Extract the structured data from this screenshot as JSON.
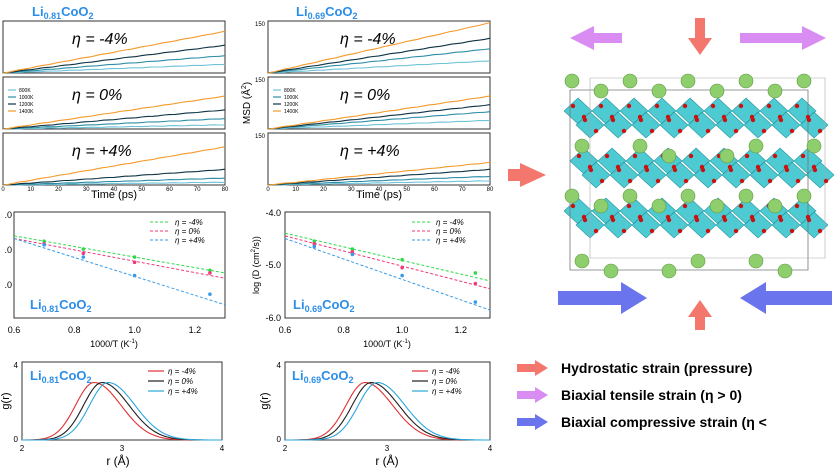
{
  "colors": {
    "c800": "#6fc3d8",
    "c1000": "#2d8ea6",
    "c1200": "#0d3344",
    "c1400": "#f39a2a",
    "eta_neg4": "#2fd94a",
    "eta_0": "#ee3a7a",
    "eta_pos4": "#3a9ae6",
    "gr_neg4": "#e03030",
    "gr_0": "#202020",
    "gr_pos4": "#2aa6dc",
    "title_blue": "#2c8ee8",
    "pink_arrow": "#f4776d",
    "violet_arrow": "#d98cf2",
    "blue_arrow": "#6a74ec",
    "octa": "#3ec6cf",
    "li": "#8fce6c",
    "o": "#cc1111"
  },
  "left_title": "Li",
  "left_title_x": "0.81",
  "left_title_rest": "CoO",
  "left_title_sub2": "2",
  "right_title": "Li",
  "right_title_x": "0.69",
  "right_title_rest": "CoO",
  "right_title_sub2": "2",
  "panels": {
    "eta_neg4": "η = -4%",
    "eta_0": "η = 0%",
    "eta_pos4": "η = +4%"
  },
  "msd": {
    "ylabel": "MSD (Å",
    "ylabel_sup": "2",
    "ylabel_end": ")",
    "yticks": [
      "0",
      "150"
    ],
    "xlabel": "Time (ps)",
    "xticks": [
      "0",
      "10",
      "20",
      "30",
      "40",
      "50",
      "60",
      "70",
      "80"
    ],
    "legend": [
      "800K",
      "1000K",
      "1200K",
      "1400K"
    ]
  },
  "chart_data": [
    {
      "type": "line",
      "title": "Li0.81CoO2 MSD",
      "xlabel": "Time (ps)",
      "ylabel": "",
      "xlim": [
        0,
        80
      ],
      "ylim": [
        0,
        150
      ],
      "subpanels": [
        {
          "eta": "-4%",
          "series": [
            {
              "name": "800K",
              "end": 25
            },
            {
              "name": "1000K",
              "end": 50
            },
            {
              "name": "1200K",
              "end": 80
            },
            {
              "name": "1400K",
              "end": 120
            }
          ]
        },
        {
          "eta": "0%",
          "series": [
            {
              "name": "800K",
              "end": 12
            },
            {
              "name": "1000K",
              "end": 30
            },
            {
              "name": "1200K",
              "end": 55
            },
            {
              "name": "1400K",
              "end": 95
            }
          ]
        },
        {
          "eta": "+4%",
          "series": [
            {
              "name": "800K",
              "end": 8
            },
            {
              "name": "1000K",
              "end": 20
            },
            {
              "name": "1200K",
              "end": 45
            },
            {
              "name": "1400K",
              "end": 110
            }
          ]
        }
      ]
    },
    {
      "type": "line",
      "title": "Li0.69CoO2 MSD",
      "xlabel": "Time (ps)",
      "ylabel": "MSD (Å2)",
      "xlim": [
        0,
        80
      ],
      "ylim": [
        0,
        150
      ],
      "subpanels": [
        {
          "eta": "-4%",
          "series": [
            {
              "name": "800K",
              "end": 35
            },
            {
              "name": "1000K",
              "end": 70
            },
            {
              "name": "1200K",
              "end": 100
            },
            {
              "name": "1400K",
              "end": 145
            }
          ]
        },
        {
          "eta": "0%",
          "series": [
            {
              "name": "800K",
              "end": 25
            },
            {
              "name": "1000K",
              "end": 50
            },
            {
              "name": "1200K",
              "end": 70
            },
            {
              "name": "1400K",
              "end": 95
            }
          ]
        },
        {
          "eta": "+4%",
          "series": [
            {
              "name": "800K",
              "end": 12
            },
            {
              "name": "1000K",
              "end": 25
            },
            {
              "name": "1200K",
              "end": 45
            },
            {
              "name": "1400K",
              "end": 65
            }
          ]
        }
      ]
    },
    {
      "type": "scatter",
      "title": "Li0.81CoO2 Arrhenius",
      "xlabel": "1000/T (K",
      "ylabel": "",
      "xlim": [
        0.6,
        1.3
      ],
      "ylim": [
        -6.0,
        -4.0
      ],
      "series": [
        {
          "name": "η = -4%",
          "points": [
            [
              0.7,
              -4.55
            ],
            [
              0.83,
              -4.7
            ],
            [
              1.0,
              -4.85
            ],
            [
              1.25,
              -5.1
            ]
          ],
          "fit": [
            [
              0.6,
              -4.45
            ],
            [
              1.3,
              -5.15
            ]
          ]
        },
        {
          "name": "η = 0%",
          "points": [
            [
              0.7,
              -4.6
            ],
            [
              0.83,
              -4.78
            ],
            [
              1.0,
              -4.95
            ],
            [
              1.25,
              -5.15
            ]
          ],
          "fit": [
            [
              0.6,
              -4.5
            ],
            [
              1.3,
              -5.25
            ]
          ]
        },
        {
          "name": "η = +4%",
          "points": [
            [
              0.7,
              -4.62
            ],
            [
              0.83,
              -4.85
            ],
            [
              1.0,
              -5.2
            ],
            [
              1.25,
              -5.55
            ]
          ],
          "fit": [
            [
              0.6,
              -4.5
            ],
            [
              1.3,
              -5.75
            ]
          ]
        }
      ]
    },
    {
      "type": "scatter",
      "title": "Li0.69CoO2 Arrhenius",
      "xlabel": "1000/T (K",
      "ylabel": "log (D (cm",
      "xlim": [
        0.6,
        1.3
      ],
      "ylim": [
        -6.0,
        -4.0
      ],
      "series": [
        {
          "name": "η = -4%",
          "points": [
            [
              0.7,
              -4.55
            ],
            [
              0.83,
              -4.7
            ],
            [
              1.0,
              -4.9
            ],
            [
              1.25,
              -5.15
            ]
          ],
          "fit": [
            [
              0.6,
              -4.4
            ],
            [
              1.3,
              -5.3
            ]
          ]
        },
        {
          "name": "η = 0%",
          "points": [
            [
              0.7,
              -4.6
            ],
            [
              0.83,
              -4.75
            ],
            [
              1.0,
              -5.05
            ],
            [
              1.25,
              -5.35
            ]
          ],
          "fit": [
            [
              0.6,
              -4.45
            ],
            [
              1.3,
              -5.45
            ]
          ]
        },
        {
          "name": "η = +4%",
          "points": [
            [
              0.7,
              -4.65
            ],
            [
              0.83,
              -4.8
            ],
            [
              1.0,
              -5.2
            ],
            [
              1.25,
              -5.7
            ]
          ],
          "fit": [
            [
              0.6,
              -4.5
            ],
            [
              1.3,
              -5.85
            ]
          ]
        }
      ]
    },
    {
      "type": "line",
      "title": "Li0.81CoO2 g(r)",
      "xlabel": "r (Å)",
      "ylabel": "g(r)",
      "xlim": [
        2,
        4
      ],
      "ylim": [
        0,
        4
      ],
      "series": [
        {
          "name": "η = -4%",
          "peak": 2.72
        },
        {
          "name": "η = 0%",
          "peak": 2.8
        },
        {
          "name": "η = +4%",
          "peak": 2.86
        }
      ]
    },
    {
      "type": "line",
      "title": "Li0.69CoO2 g(r)",
      "xlabel": "r (Å)",
      "ylabel": "g(r)",
      "xlim": [
        2,
        4
      ],
      "ylim": [
        0,
        4
      ],
      "series": [
        {
          "name": "η = -4%",
          "peak": 2.78
        },
        {
          "name": "η = 0%",
          "peak": 2.84
        },
        {
          "name": "η = +4%",
          "peak": 2.9
        }
      ]
    }
  ],
  "arr": {
    "xticks": [
      "0.6",
      "0.8",
      "1.0",
      "1.2"
    ],
    "yticks_right": [
      "-4.0",
      "-5.0",
      "-6.0"
    ],
    "yticks_left": [
      ".0",
      ".0",
      ".0"
    ],
    "xlabel": "1000/T (K",
    "xlabel_sup": "-1",
    "xlabel_end": ")",
    "ylabel": "log (D (cm",
    "ylabel_sup": "2",
    "ylabel_end": "/s))",
    "legend": [
      "η = -4%",
      "η = 0%",
      "η = +4%"
    ]
  },
  "gr": {
    "xlabel": "r (Å)",
    "ylabel": "g(r)",
    "xticks": [
      "2",
      "3",
      "4"
    ],
    "yticks": [
      "0",
      "4"
    ],
    "legend": [
      "η = -4%",
      "η = 0%",
      "η = +4%"
    ]
  },
  "strain_legend": [
    "Hydrostatic strain (pressure)",
    "Biaxial tensile strain (η > 0)",
    "Biaxial compressive strain (η <"
  ]
}
